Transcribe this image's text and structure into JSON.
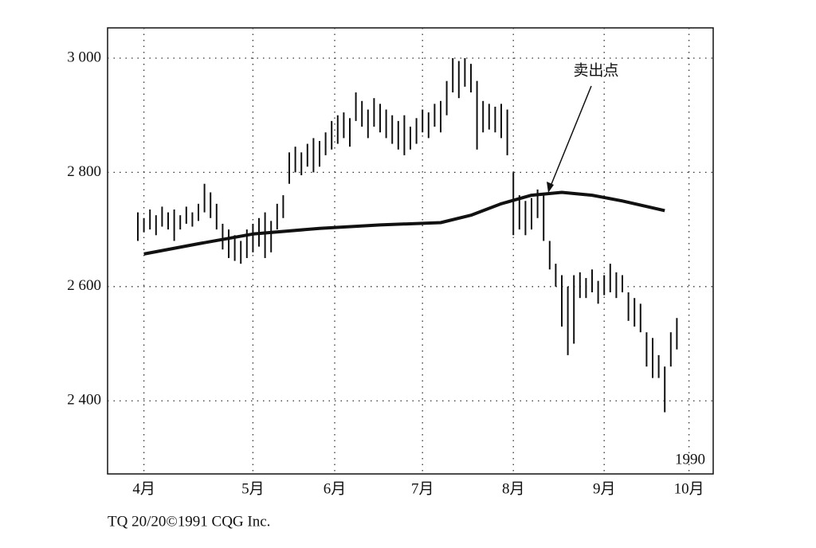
{
  "chart_data": {
    "type": "range-bar",
    "annotation": "卖出点",
    "year_label": "1990",
    "footer": "TQ 20/20©1991 CQG Inc.",
    "x": [
      5,
      6,
      7,
      8,
      9,
      10,
      11,
      12,
      13,
      14,
      15,
      16,
      17,
      18,
      19,
      20,
      21,
      22,
      23,
      24,
      25,
      26,
      27,
      28,
      29,
      30,
      31,
      32,
      33,
      34,
      35,
      36,
      37,
      38,
      39,
      40,
      41,
      42,
      43,
      44,
      45,
      46,
      47,
      48,
      49,
      50,
      51,
      52,
      53,
      54,
      55,
      56,
      57,
      58,
      59,
      60,
      61,
      62,
      63,
      64,
      65,
      66,
      67,
      68,
      69,
      70,
      71,
      72,
      73,
      74,
      75,
      76,
      77,
      78,
      79,
      80,
      81,
      82,
      83,
      84,
      85,
      86,
      87,
      88,
      89,
      90,
      91,
      92,
      93,
      94
    ],
    "highs": [
      2730,
      2720,
      2735,
      2725,
      2740,
      2730,
      2735,
      2725,
      2740,
      2730,
      2745,
      2780,
      2765,
      2745,
      2710,
      2700,
      2690,
      2680,
      2700,
      2710,
      2720,
      2730,
      2715,
      2745,
      2760,
      2835,
      2845,
      2835,
      2850,
      2860,
      2855,
      2870,
      2890,
      2900,
      2905,
      2895,
      2940,
      2925,
      2910,
      2930,
      2920,
      2910,
      2900,
      2890,
      2900,
      2880,
      2895,
      2910,
      2905,
      2920,
      2925,
      2960,
      3000,
      2995,
      3000,
      2990,
      2960,
      2925,
      2920,
      2915,
      2920,
      2910,
      2800,
      2760,
      2750,
      2755,
      2770,
      2760,
      2680,
      2640,
      2620,
      2600,
      2620,
      2625,
      2615,
      2630,
      2610,
      2620,
      2640,
      2625,
      2620,
      2590,
      2580,
      2570,
      2520,
      2510,
      2480,
      2460,
      2520,
      2545
    ],
    "lows": [
      2680,
      2695,
      2700,
      2690,
      2705,
      2700,
      2680,
      2700,
      2710,
      2705,
      2715,
      2730,
      2720,
      2700,
      2665,
      2650,
      2645,
      2640,
      2650,
      2660,
      2670,
      2650,
      2660,
      2700,
      2720,
      2780,
      2800,
      2795,
      2810,
      2800,
      2810,
      2830,
      2840,
      2850,
      2860,
      2845,
      2890,
      2880,
      2860,
      2880,
      2870,
      2860,
      2850,
      2840,
      2830,
      2840,
      2850,
      2870,
      2860,
      2880,
      2870,
      2900,
      2940,
      2930,
      2950,
      2940,
      2840,
      2870,
      2875,
      2870,
      2860,
      2830,
      2690,
      2700,
      2690,
      2700,
      2720,
      2680,
      2630,
      2600,
      2530,
      2480,
      2500,
      2580,
      2580,
      2590,
      2570,
      2585,
      2590,
      2580,
      2590,
      2540,
      2530,
      2520,
      2460,
      2440,
      2440,
      2380,
      2460,
      2490
    ],
    "ma_x": [
      6,
      15,
      24,
      35,
      45,
      55,
      60,
      65,
      70,
      75,
      80,
      85,
      92
    ],
    "ma_values": [
      2657,
      2675,
      2692,
      2702,
      2708,
      2712,
      2725,
      2745,
      2760,
      2765,
      2760,
      2750,
      2733
    ],
    "color": "#111111",
    "xlim": [
      0,
      100
    ],
    "xticks": [
      {
        "value": 6,
        "label": "4月"
      },
      {
        "value": 24,
        "label": "5月"
      },
      {
        "value": 37.5,
        "label": "6月"
      },
      {
        "value": 52,
        "label": "7月"
      },
      {
        "value": 67,
        "label": "8月"
      },
      {
        "value": 82,
        "label": "9月"
      },
      {
        "value": 96,
        "label": "10月"
      }
    ],
    "ylim": [
      2272,
      3053
    ],
    "yticks": [
      {
        "value": 2400,
        "label": "2 400"
      },
      {
        "value": 2600,
        "label": "2 600"
      },
      {
        "value": 2800,
        "label": "2 800"
      },
      {
        "value": 3000,
        "label": "3 000"
      }
    ],
    "grid": true
  }
}
